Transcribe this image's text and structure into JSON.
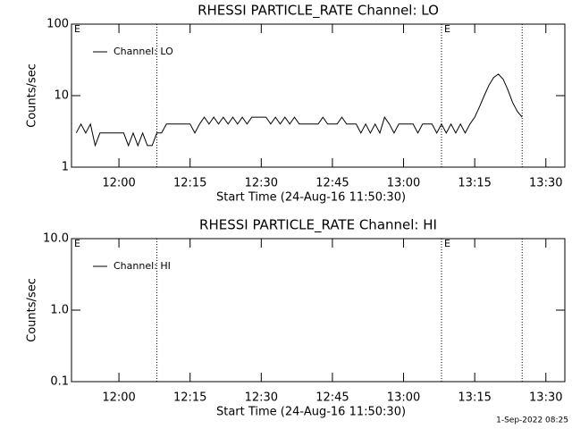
{
  "chart_data": [
    {
      "type": "line",
      "title": "RHESSI PARTICLE_RATE Channel: LO",
      "xlabel": "Start Time (24-Aug-16 11:50:30)",
      "ylabel": "Counts/sec",
      "log_y": true,
      "legend": "upper left",
      "xlim": [
        "11:50",
        "13:34"
      ],
      "ylim": [
        1,
        100
      ],
      "yticks": [
        1,
        10,
        100
      ],
      "xticks": [
        "12:00",
        "12:15",
        "12:30",
        "12:45",
        "13:00",
        "13:15",
        "13:30"
      ],
      "vlines": [
        "12:08",
        "13:08",
        "13:25"
      ],
      "annotations": [
        {
          "text": "E",
          "x": "11:50"
        },
        {
          "text": "E",
          "x": "13:08"
        }
      ],
      "x": [
        "11:51",
        "11:52",
        "11:53",
        "11:54",
        "11:55",
        "11:56",
        "11:57",
        "11:58",
        "11:59",
        "12:00",
        "12:01",
        "12:02",
        "12:03",
        "12:04",
        "12:05",
        "12:06",
        "12:07",
        "12:08",
        "12:09",
        "12:10",
        "12:11",
        "12:12",
        "12:13",
        "12:14",
        "12:15",
        "12:16",
        "12:17",
        "12:18",
        "12:19",
        "12:20",
        "12:21",
        "12:22",
        "12:23",
        "12:24",
        "12:25",
        "12:26",
        "12:27",
        "12:28",
        "12:29",
        "12:30",
        "12:31",
        "12:32",
        "12:33",
        "12:34",
        "12:35",
        "12:36",
        "12:37",
        "12:38",
        "12:39",
        "12:40",
        "12:41",
        "12:42",
        "12:43",
        "12:44",
        "12:45",
        "12:46",
        "12:47",
        "12:48",
        "12:49",
        "12:50",
        "12:51",
        "12:52",
        "12:53",
        "12:54",
        "12:55",
        "12:56",
        "12:57",
        "12:58",
        "12:59",
        "13:00",
        "13:01",
        "13:02",
        "13:03",
        "13:04",
        "13:05",
        "13:06",
        "13:07",
        "13:08",
        "13:09",
        "13:10",
        "13:11",
        "13:12",
        "13:13",
        "13:14",
        "13:15",
        "13:16",
        "13:17",
        "13:18",
        "13:19",
        "13:20",
        "13:21",
        "13:22",
        "13:23",
        "13:24",
        "13:25"
      ],
      "series": [
        {
          "name": "Channel: LO",
          "color": "#000000",
          "values": [
            3,
            4,
            3,
            4,
            2,
            3,
            3,
            3,
            3,
            3,
            3,
            2,
            3,
            2,
            3,
            2,
            2,
            3,
            3,
            4,
            4,
            4,
            4,
            4,
            4,
            3,
            4,
            5,
            4,
            5,
            4,
            5,
            4,
            5,
            4,
            5,
            4,
            5,
            5,
            5,
            5,
            4,
            5,
            4,
            5,
            4,
            5,
            4,
            4,
            4,
            4,
            4,
            5,
            4,
            4,
            4,
            5,
            4,
            4,
            4,
            3,
            4,
            3,
            4,
            3,
            5,
            4,
            3,
            4,
            4,
            4,
            4,
            3,
            4,
            4,
            4,
            3,
            4,
            3,
            4,
            3,
            4,
            3,
            4,
            5,
            7,
            10,
            14,
            18,
            20,
            17,
            12,
            8,
            6,
            5
          ]
        }
      ]
    },
    {
      "type": "line",
      "title": "RHESSI PARTICLE_RATE Channel: HI",
      "xlabel": "Start Time (24-Aug-16 11:50:30)",
      "ylabel": "Counts/sec",
      "log_y": true,
      "legend": "upper left",
      "xlim": [
        "11:50",
        "13:34"
      ],
      "ylim": [
        0.1,
        10
      ],
      "yticks": [
        0.1,
        {
          "value": 1,
          "label": "1.0"
        },
        {
          "value": 10,
          "label": "10.0"
        }
      ],
      "xticks": [
        "12:00",
        "12:15",
        "12:30",
        "12:45",
        "13:00",
        "13:15",
        "13:30"
      ],
      "vlines": [
        "12:08",
        "13:08",
        "13:25"
      ],
      "annotations": [
        {
          "text": "E",
          "x": "11:50"
        },
        {
          "text": "E",
          "x": "13:08"
        }
      ],
      "x": [],
      "series": [
        {
          "name": "Channel: HI",
          "color": "#000000",
          "values": []
        }
      ]
    }
  ],
  "footer": "1-Sep-2022 08:25"
}
